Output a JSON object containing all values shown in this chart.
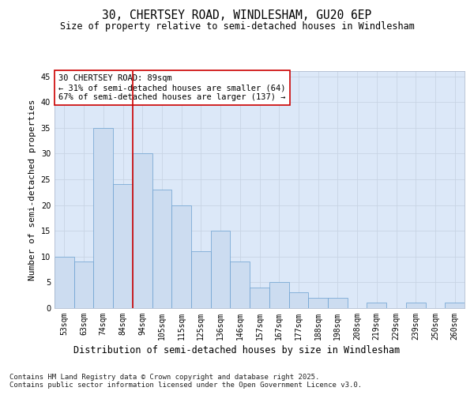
{
  "title_line1": "30, CHERTSEY ROAD, WINDLESHAM, GU20 6EP",
  "title_line2": "Size of property relative to semi-detached houses in Windlesham",
  "xlabel": "Distribution of semi-detached houses by size in Windlesham",
  "ylabel": "Number of semi-detached properties",
  "categories": [
    "53sqm",
    "63sqm",
    "74sqm",
    "84sqm",
    "94sqm",
    "105sqm",
    "115sqm",
    "125sqm",
    "136sqm",
    "146sqm",
    "157sqm",
    "167sqm",
    "177sqm",
    "188sqm",
    "198sqm",
    "208sqm",
    "219sqm",
    "229sqm",
    "239sqm",
    "250sqm",
    "260sqm"
  ],
  "values": [
    10,
    9,
    35,
    24,
    30,
    23,
    20,
    11,
    15,
    9,
    4,
    5,
    3,
    2,
    2,
    0,
    1,
    0,
    1,
    0,
    1
  ],
  "bar_color": "#ccdcf0",
  "bar_edge_color": "#6aa0d0",
  "highlight_index": 3,
  "highlight_line_color": "#cc0000",
  "annotation_text": "30 CHERTSEY ROAD: 89sqm\n← 31% of semi-detached houses are smaller (64)\n67% of semi-detached houses are larger (137) →",
  "annotation_box_color": "#ffffff",
  "annotation_box_edge_color": "#cc0000",
  "ylim": [
    0,
    46
  ],
  "yticks": [
    0,
    5,
    10,
    15,
    20,
    25,
    30,
    35,
    40,
    45
  ],
  "grid_color": "#c8d4e4",
  "background_color": "#dce8f8",
  "footer_text": "Contains HM Land Registry data © Crown copyright and database right 2025.\nContains public sector information licensed under the Open Government Licence v3.0.",
  "title_fontsize": 10.5,
  "subtitle_fontsize": 8.5,
  "ylabel_fontsize": 8,
  "xlabel_fontsize": 8.5,
  "tick_fontsize": 7,
  "annotation_fontsize": 7.5,
  "footer_fontsize": 6.5
}
